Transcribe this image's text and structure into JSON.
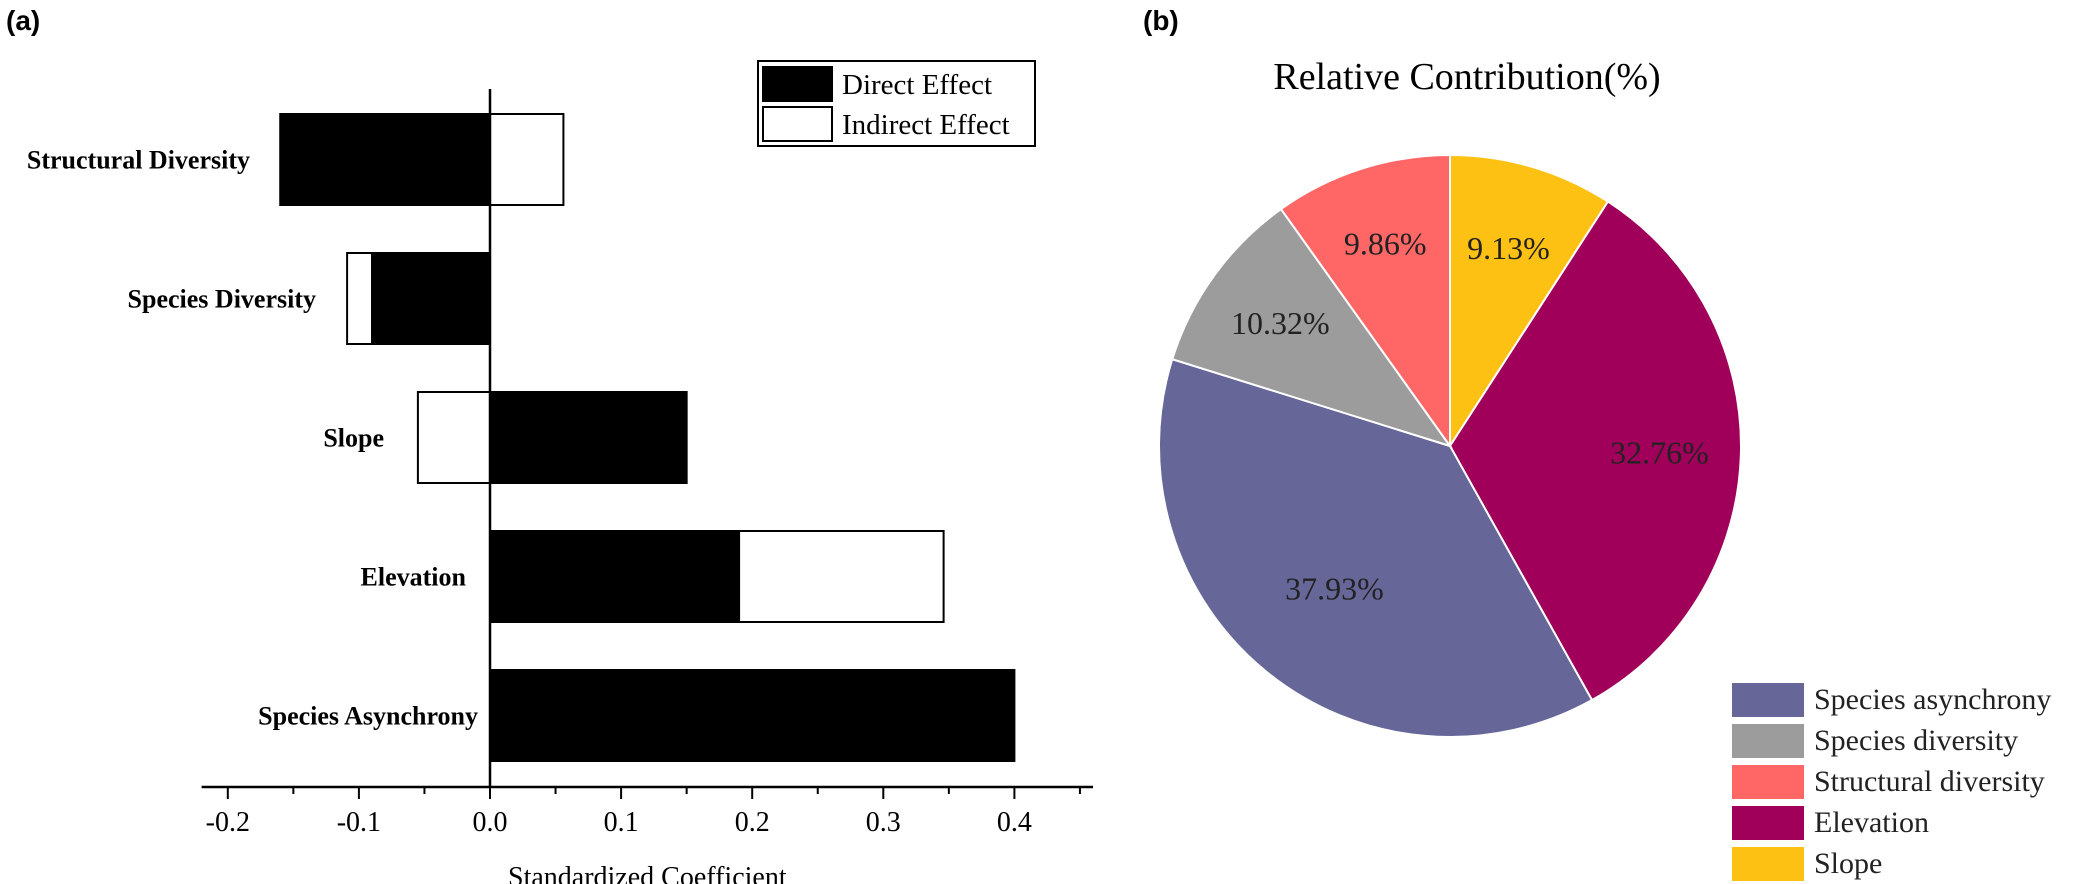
{
  "panels": {
    "a_label": "(a)",
    "b_label": "(b)"
  },
  "chart_data": [
    {
      "type": "bar",
      "orientation": "horizontal",
      "stacked": true,
      "categories": [
        "Structural Diversity",
        "Species Diversity",
        "Slope",
        "Elevation",
        "Species Asynchrony"
      ],
      "series": [
        {
          "name": "Direct Effect",
          "color": "#000000",
          "values": [
            -0.16,
            -0.09,
            0.15,
            0.19,
            0.4
          ]
        },
        {
          "name": "Indirect Effect",
          "color": "#ffffff",
          "values": [
            0.056,
            -0.019,
            -0.055,
            0.156,
            0.0
          ]
        }
      ],
      "xlabel": "Standardized Coefficient",
      "xlim": [
        -0.22,
        0.46
      ],
      "xticks": [
        "-0.2",
        "-0.1",
        "0.0",
        "0.1",
        "0.2",
        "0.3",
        "0.4"
      ],
      "legend_position": "top-right"
    },
    {
      "type": "pie",
      "title": "Relative Contribution(%)",
      "slices": [
        {
          "name": "Slope",
          "value": 9.13,
          "label": "9.13%",
          "color": "#FCC112"
        },
        {
          "name": "Elevation",
          "value": 32.76,
          "label": "32.76%",
          "color": "#A0005A"
        },
        {
          "name": "Species asynchrony",
          "value": 37.93,
          "label": "37.93%",
          "color": "#666699"
        },
        {
          "name": "Species diversity",
          "value": 10.32,
          "label": "10.32%",
          "color": "#9C9C9C"
        },
        {
          "name": "Structural diversity",
          "value": 9.86,
          "label": "9.86%",
          "color": "#FF6666"
        }
      ],
      "legend": [
        "Species asynchrony",
        "Species diversity",
        "Structural diversity",
        "Elevation",
        "Slope"
      ],
      "legend_position": "bottom-right"
    }
  ]
}
